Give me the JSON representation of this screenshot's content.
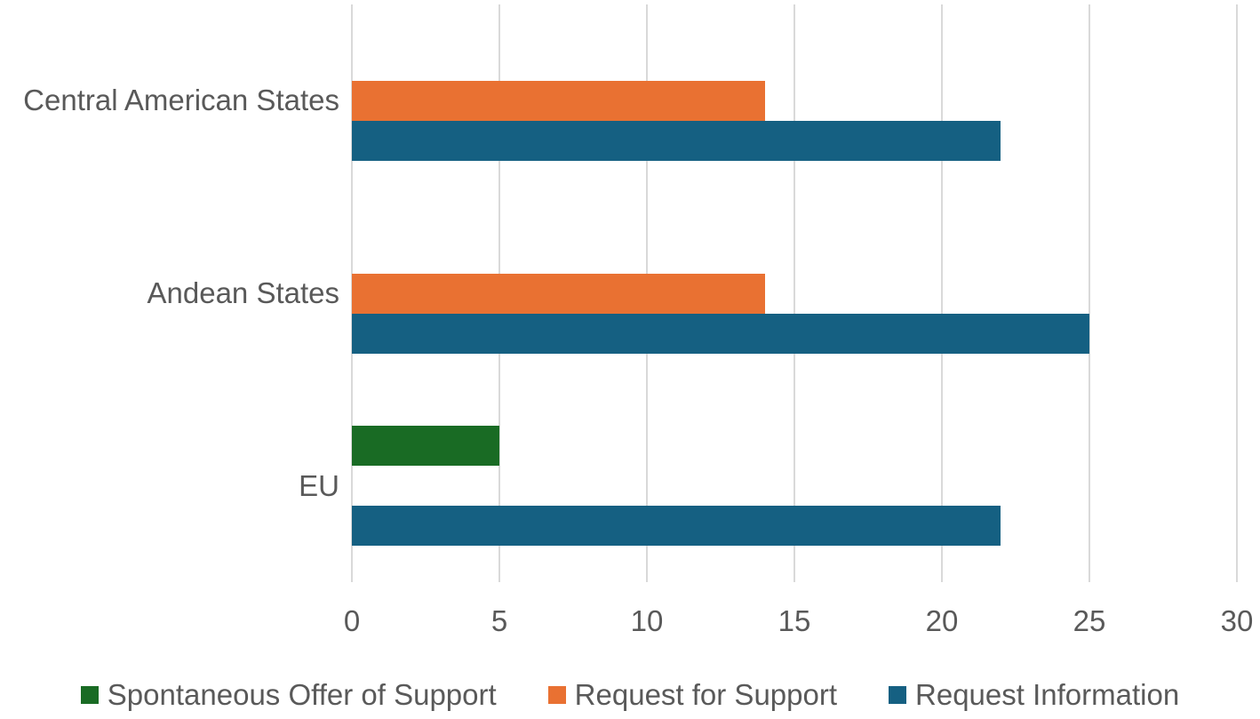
{
  "chart_data": {
    "type": "bar",
    "orientation": "horizontal",
    "title": "",
    "xlabel": "",
    "ylabel": "",
    "categories": [
      "Central American States",
      "Andean States",
      "EU"
    ],
    "series": [
      {
        "name": "Spontaneous Offer of Support",
        "color": "#196B24",
        "values": [
          0,
          0,
          5
        ]
      },
      {
        "name": "Request for Support",
        "color": "#E97132",
        "values": [
          14,
          14,
          0
        ]
      },
      {
        "name": "Request Information",
        "color": "#156082",
        "values": [
          22,
          25,
          22
        ]
      }
    ],
    "xlim": [
      0,
      30
    ],
    "x_ticks": [
      "0",
      "5",
      "10",
      "15",
      "20",
      "25",
      "30"
    ],
    "grid": true,
    "legend_position": "bottom"
  },
  "colors": {
    "background": "#FFFFFF",
    "text": "#595959",
    "gridline": "#D9D9D9"
  }
}
